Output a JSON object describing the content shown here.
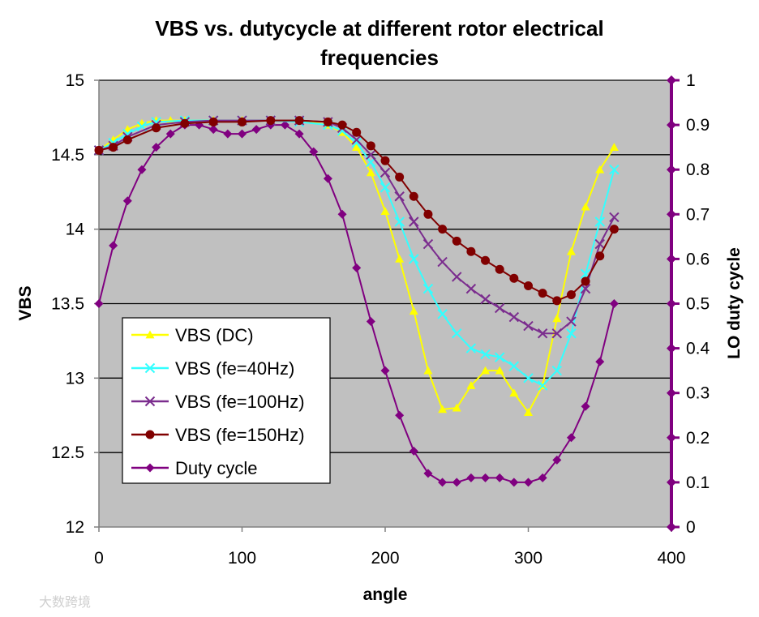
{
  "watermark": "大数跨境",
  "chart_data": {
    "type": "line",
    "title_lines": [
      "VBS vs. dutycycle at different rotor electrical",
      "frequencies"
    ],
    "xlabel": "angle",
    "ylabel": "VBS",
    "y2label": "LO duty cycle",
    "xlim": [
      0,
      400
    ],
    "ylim": [
      12,
      15
    ],
    "y2lim": [
      0,
      1
    ],
    "x_ticks": [
      "0",
      "100",
      "200",
      "300",
      "400"
    ],
    "y_ticks": [
      "12",
      "12.5",
      "13",
      "13.5",
      "14",
      "14.5",
      "15"
    ],
    "y2_ticks": [
      "0",
      "0.1",
      "0.2",
      "0.3",
      "0.4",
      "0.5",
      "0.6",
      "0.7",
      "0.8",
      "0.9",
      "1"
    ],
    "gridlines_y": [
      12.5,
      13,
      13.5,
      14,
      14.5,
      15
    ],
    "plot_background": "#c0c0c0",
    "legend_position": "bottom-left",
    "series": [
      {
        "name": "VBS (DC)",
        "axis": "left",
        "color": "#ffff00",
        "marker": "triangle",
        "x": [
          0,
          10,
          20,
          30,
          40,
          50,
          60,
          80,
          100,
          120,
          140,
          160,
          170,
          180,
          190,
          200,
          210,
          220,
          230,
          240,
          250,
          260,
          270,
          280,
          290,
          300,
          310,
          320,
          330,
          340,
          350,
          360
        ],
        "y": [
          14.53,
          14.6,
          14.67,
          14.71,
          14.73,
          14.73,
          14.73,
          14.73,
          14.73,
          14.73,
          14.73,
          14.7,
          14.65,
          14.55,
          14.38,
          14.12,
          13.8,
          13.45,
          13.05,
          12.79,
          12.8,
          12.95,
          13.05,
          13.05,
          12.9,
          12.77,
          12.95,
          13.4,
          13.85,
          14.15,
          14.4,
          14.55
        ]
      },
      {
        "name": "VBS (fe=40Hz)",
        "axis": "left",
        "color": "#33ffff",
        "marker": "x",
        "x": [
          0,
          10,
          20,
          30,
          40,
          60,
          80,
          100,
          120,
          140,
          160,
          170,
          180,
          190,
          200,
          210,
          220,
          230,
          240,
          250,
          260,
          270,
          280,
          290,
          300,
          310,
          320,
          330,
          340,
          350,
          360
        ],
        "y": [
          14.53,
          14.58,
          14.64,
          14.69,
          14.72,
          14.73,
          14.73,
          14.73,
          14.73,
          14.72,
          14.7,
          14.66,
          14.58,
          14.45,
          14.28,
          14.05,
          13.8,
          13.6,
          13.43,
          13.3,
          13.2,
          13.16,
          13.14,
          13.08,
          13.0,
          12.95,
          13.05,
          13.3,
          13.7,
          14.05,
          14.4
        ]
      },
      {
        "name": "VBS (fe=100Hz)",
        "axis": "left",
        "color": "#7b2d8e",
        "marker": "x",
        "x": [
          0,
          10,
          20,
          40,
          60,
          80,
          100,
          120,
          140,
          160,
          170,
          180,
          190,
          200,
          210,
          220,
          230,
          240,
          250,
          260,
          270,
          280,
          290,
          300,
          310,
          320,
          330,
          340,
          350,
          360
        ],
        "y": [
          14.53,
          14.56,
          14.62,
          14.7,
          14.72,
          14.73,
          14.73,
          14.73,
          14.73,
          14.72,
          14.68,
          14.6,
          14.5,
          14.38,
          14.22,
          14.05,
          13.9,
          13.78,
          13.68,
          13.6,
          13.53,
          13.47,
          13.41,
          13.35,
          13.3,
          13.3,
          13.38,
          13.6,
          13.9,
          14.08
        ]
      },
      {
        "name": "VBS (fe=150Hz)",
        "axis": "left",
        "color": "#800000",
        "marker": "circle",
        "x": [
          0,
          10,
          20,
          40,
          60,
          80,
          100,
          120,
          140,
          160,
          170,
          180,
          190,
          200,
          210,
          220,
          230,
          240,
          250,
          260,
          270,
          280,
          290,
          300,
          310,
          320,
          330,
          340,
          350,
          360
        ],
        "y": [
          14.53,
          14.55,
          14.6,
          14.68,
          14.71,
          14.72,
          14.72,
          14.73,
          14.73,
          14.72,
          14.7,
          14.65,
          14.56,
          14.46,
          14.35,
          14.22,
          14.1,
          14.0,
          13.92,
          13.85,
          13.79,
          13.73,
          13.67,
          13.62,
          13.57,
          13.52,
          13.56,
          13.65,
          13.82,
          14.0
        ]
      },
      {
        "name": "Duty cycle",
        "axis": "right",
        "color": "#800080",
        "marker": "diamond",
        "x": [
          0,
          10,
          20,
          30,
          40,
          50,
          60,
          70,
          80,
          90,
          100,
          110,
          120,
          130,
          140,
          150,
          160,
          170,
          180,
          190,
          200,
          210,
          220,
          230,
          240,
          250,
          260,
          270,
          280,
          290,
          300,
          310,
          320,
          330,
          340,
          350,
          360
        ],
        "y": [
          0.5,
          0.63,
          0.73,
          0.8,
          0.85,
          0.88,
          0.9,
          0.9,
          0.89,
          0.88,
          0.88,
          0.89,
          0.9,
          0.9,
          0.88,
          0.84,
          0.78,
          0.7,
          0.58,
          0.46,
          0.35,
          0.25,
          0.17,
          0.12,
          0.1,
          0.1,
          0.11,
          0.11,
          0.11,
          0.1,
          0.1,
          0.11,
          0.15,
          0.2,
          0.27,
          0.37,
          0.5
        ]
      }
    ]
  }
}
